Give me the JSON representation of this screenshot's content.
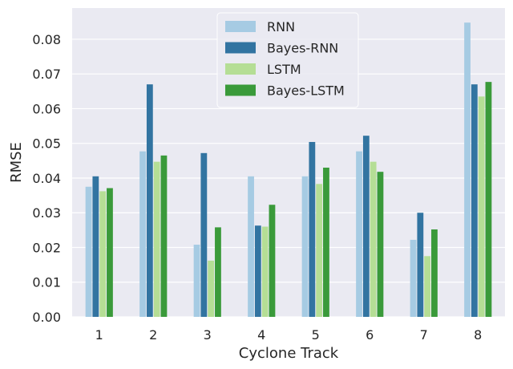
{
  "chart_data": {
    "type": "bar",
    "xlabel": "Cyclone Track",
    "ylabel": "RMSE",
    "categories": [
      "1",
      "2",
      "3",
      "4",
      "5",
      "6",
      "7",
      "8"
    ],
    "ylim": [
      0,
      0.089
    ],
    "yticks": [
      "0.00",
      "0.01",
      "0.02",
      "0.03",
      "0.04",
      "0.05",
      "0.06",
      "0.07",
      "0.08"
    ],
    "grid": true,
    "legend_position": "top-center",
    "series": [
      {
        "name": "RNN",
        "color": "#a6cbe3",
        "values": [
          0.0375,
          0.0477,
          0.0208,
          0.0405,
          0.0405,
          0.0477,
          0.0222,
          0.0848
        ]
      },
      {
        "name": "Bayes-RNN",
        "color": "#3274a1",
        "values": [
          0.0405,
          0.067,
          0.0472,
          0.0263,
          0.0504,
          0.0522,
          0.03,
          0.067
        ]
      },
      {
        "name": "LSTM",
        "color": "#b5de95",
        "values": [
          0.0362,
          0.0447,
          0.0162,
          0.026,
          0.0383,
          0.0447,
          0.0175,
          0.0635
        ]
      },
      {
        "name": "Bayes-LSTM",
        "color": "#3a9a3a",
        "values": [
          0.0371,
          0.0465,
          0.0258,
          0.0323,
          0.043,
          0.0418,
          0.0252,
          0.0677
        ]
      }
    ],
    "style": {
      "background": "#eaeaf2",
      "grid_color": "#ffffff"
    }
  }
}
